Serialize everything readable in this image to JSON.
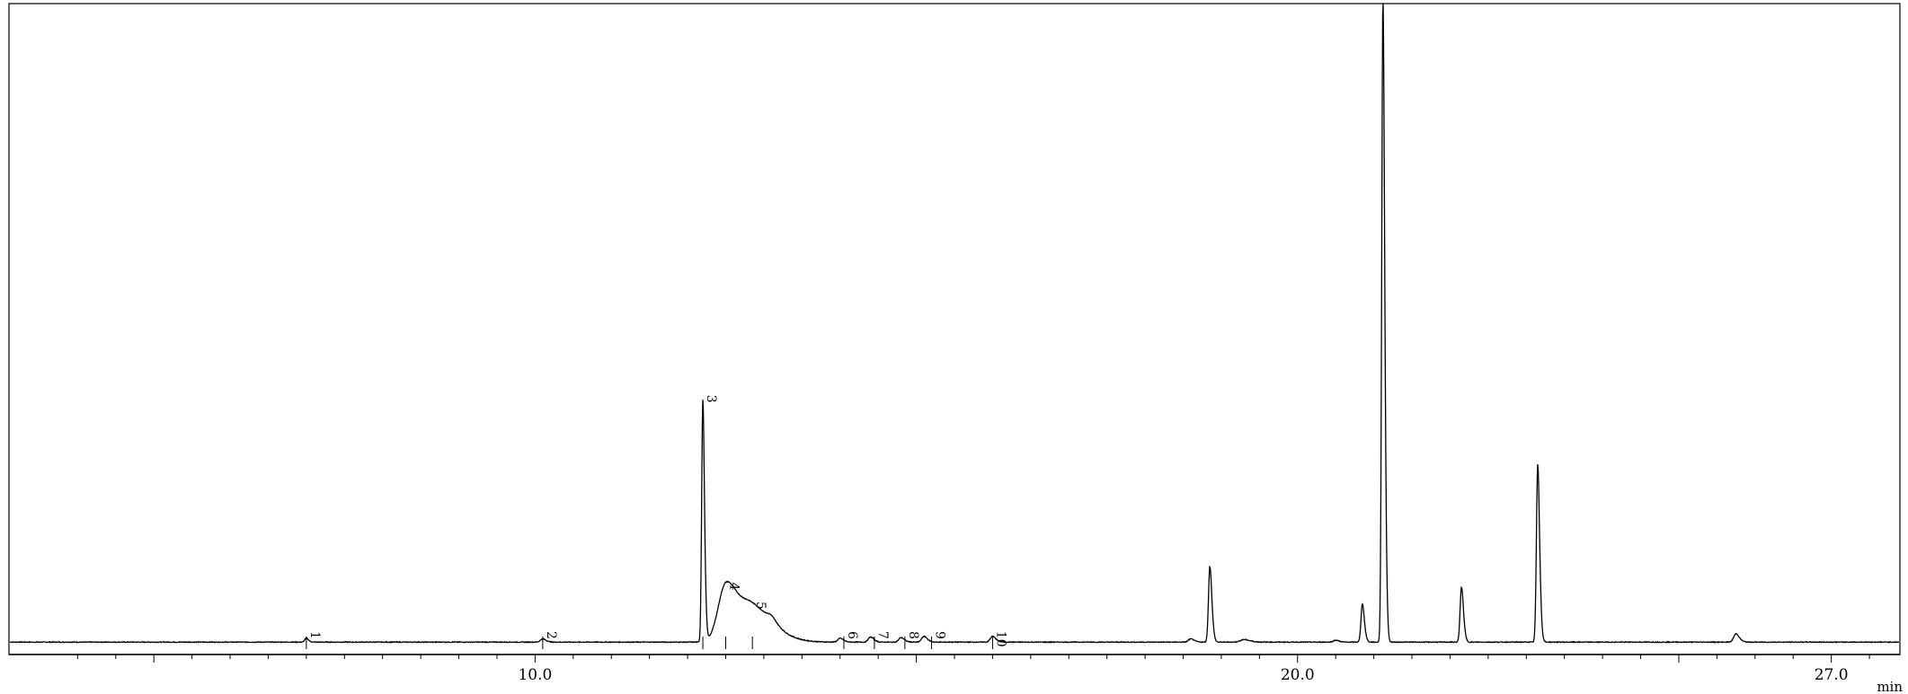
{
  "chart_data": {
    "type": "line",
    "title": "",
    "xlabel": "",
    "ylabel": "",
    "x_unit": "min",
    "xlim": [
      3.1,
      27.9
    ],
    "ylim": [
      0,
      100
    ],
    "grid": false,
    "x_tick_labels": [
      {
        "x": 10.0,
        "label": "10.0"
      },
      {
        "x": 20.0,
        "label": "20.0"
      },
      {
        "x": 27.0,
        "label": "27.0"
      }
    ],
    "baseline": 0.25,
    "series": [
      {
        "peaks": [
          {
            "x": 7.0,
            "height": 0.6,
            "width": 0.02
          },
          {
            "x": 10.1,
            "height": 0.5,
            "width": 0.03
          },
          {
            "x": 12.2,
            "height": 37.8,
            "width": 0.015
          },
          {
            "x": 12.5,
            "height": 8.5,
            "width": 0.1
          },
          {
            "x": 12.85,
            "height": 5.5,
            "width": 0.18
          },
          {
            "x": 13.1,
            "height": 0.8,
            "width": 0.05
          },
          {
            "x": 14.0,
            "height": 0.6,
            "width": 0.03
          },
          {
            "x": 14.4,
            "height": 0.8,
            "width": 0.03
          },
          {
            "x": 14.8,
            "height": 0.7,
            "width": 0.03
          },
          {
            "x": 15.1,
            "height": 0.9,
            "width": 0.03
          },
          {
            "x": 16.0,
            "height": 0.9,
            "width": 0.03
          },
          {
            "x": 18.6,
            "height": 0.5,
            "width": 0.03
          },
          {
            "x": 18.85,
            "height": 11.8,
            "width": 0.018
          },
          {
            "x": 19.3,
            "height": 0.4,
            "width": 0.05
          },
          {
            "x": 20.5,
            "height": 0.3,
            "width": 0.03
          },
          {
            "x": 20.85,
            "height": 6.0,
            "width": 0.018
          },
          {
            "x": 21.12,
            "height": 100.5,
            "width": 0.016
          },
          {
            "x": 22.15,
            "height": 8.6,
            "width": 0.018
          },
          {
            "x": 23.15,
            "height": 27.8,
            "width": 0.017
          },
          {
            "x": 25.75,
            "height": 1.3,
            "width": 0.03
          }
        ]
      }
    ],
    "integration_marks": [
      {
        "x": 7.0,
        "label": "1"
      },
      {
        "x": 10.1,
        "label": "2"
      },
      {
        "x": 12.2,
        "label": "3"
      },
      {
        "x": 12.5,
        "label": "4"
      },
      {
        "x": 12.85,
        "label": "5"
      },
      {
        "x": 14.05,
        "label": "6"
      },
      {
        "x": 14.45,
        "label": "7"
      },
      {
        "x": 14.85,
        "label": "8"
      },
      {
        "x": 15.2,
        "label": "9"
      },
      {
        "x": 16.0,
        "label": "10"
      }
    ]
  }
}
